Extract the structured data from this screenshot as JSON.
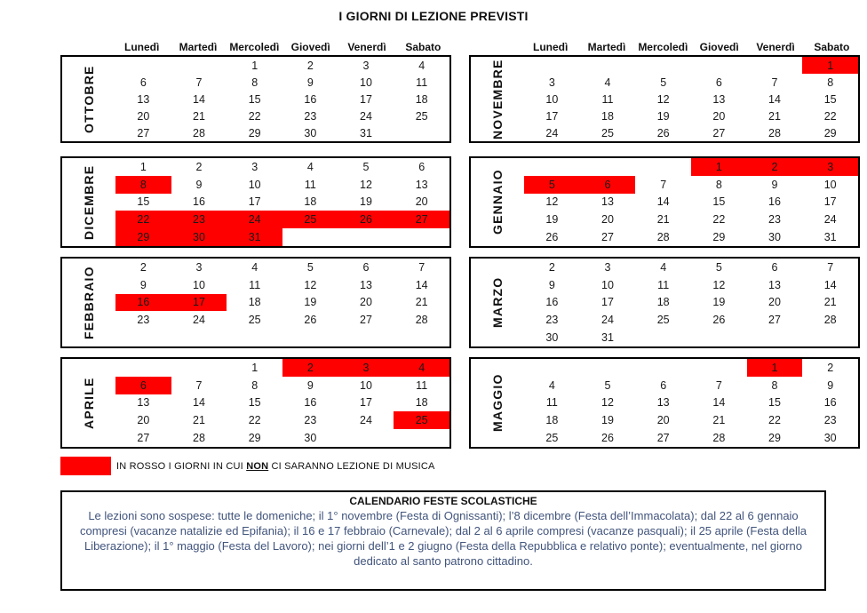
{
  "title": "I GIORNI DI LEZIONE PREVISTI",
  "weekday_headers": [
    "Lunedì",
    "Martedì",
    "Mercoledì",
    "Giovedì",
    "Venerdì",
    "Sabato"
  ],
  "colors": {
    "highlight_red": "#FF0000",
    "holiday_text_blue": "#41547C",
    "border_black": "#000000"
  },
  "months": [
    {
      "name": "OTTOBRE",
      "cells": [
        [
          "",
          "",
          "1",
          "2",
          "3",
          "4"
        ],
        [
          "6",
          "7",
          "8",
          "9",
          "10",
          "11"
        ],
        [
          "13",
          "14",
          "15",
          "16",
          "17",
          "18"
        ],
        [
          "20",
          "21",
          "22",
          "23",
          "24",
          "25"
        ],
        [
          "27",
          "28",
          "29",
          "30",
          "31",
          ""
        ]
      ],
      "red": []
    },
    {
      "name": "NOVEMBRE",
      "cells": [
        [
          "",
          "",
          "",
          "",
          "",
          "1"
        ],
        [
          "3",
          "4",
          "5",
          "6",
          "7",
          "8"
        ],
        [
          "10",
          "11",
          "12",
          "13",
          "14",
          "15"
        ],
        [
          "17",
          "18",
          "19",
          "20",
          "21",
          "22"
        ],
        [
          "24",
          "25",
          "26",
          "27",
          "28",
          "29"
        ]
      ],
      "red": [
        [
          0,
          5
        ]
      ]
    },
    {
      "name": "DICEMBRE",
      "cells": [
        [
          "1",
          "2",
          "3",
          "4",
          "5",
          "6"
        ],
        [
          "8",
          "9",
          "10",
          "11",
          "12",
          "13"
        ],
        [
          "15",
          "16",
          "17",
          "18",
          "19",
          "20"
        ],
        [
          "22",
          "23",
          "24",
          "25",
          "26",
          "27"
        ],
        [
          "29",
          "30",
          "31",
          "",
          "",
          ""
        ]
      ],
      "red": [
        [
          1,
          0
        ],
        [
          3,
          0
        ],
        [
          3,
          1
        ],
        [
          3,
          2
        ],
        [
          3,
          3
        ],
        [
          3,
          4
        ],
        [
          3,
          5
        ],
        [
          4,
          0
        ],
        [
          4,
          1
        ],
        [
          4,
          2
        ]
      ]
    },
    {
      "name": "GENNAIO",
      "cells": [
        [
          "",
          "",
          "",
          "1",
          "2",
          "3"
        ],
        [
          "5",
          "6",
          "7",
          "8",
          "9",
          "10"
        ],
        [
          "12",
          "13",
          "14",
          "15",
          "16",
          "17"
        ],
        [
          "19",
          "20",
          "21",
          "22",
          "23",
          "24"
        ],
        [
          "26",
          "27",
          "28",
          "29",
          "30",
          "31"
        ]
      ],
      "red": [
        [
          0,
          3
        ],
        [
          0,
          4
        ],
        [
          0,
          5
        ],
        [
          1,
          0
        ],
        [
          1,
          1
        ]
      ]
    },
    {
      "name": "FEBBRAIO",
      "cells": [
        [
          "2",
          "3",
          "4",
          "5",
          "6",
          "7"
        ],
        [
          "9",
          "10",
          "11",
          "12",
          "13",
          "14"
        ],
        [
          "16",
          "17",
          "18",
          "19",
          "20",
          "21"
        ],
        [
          "23",
          "24",
          "25",
          "26",
          "27",
          "28"
        ],
        [
          "",
          "",
          "",
          "",
          "",
          ""
        ]
      ],
      "red": [
        [
          2,
          0
        ],
        [
          2,
          1
        ]
      ]
    },
    {
      "name": "MARZO",
      "cells": [
        [
          "2",
          "3",
          "4",
          "5",
          "6",
          "7"
        ],
        [
          "9",
          "10",
          "11",
          "12",
          "13",
          "14"
        ],
        [
          "16",
          "17",
          "18",
          "19",
          "20",
          "21"
        ],
        [
          "23",
          "24",
          "25",
          "26",
          "27",
          "28"
        ],
        [
          "30",
          "31",
          "",
          "",
          "",
          ""
        ]
      ],
      "red": []
    },
    {
      "name": "APRILE",
      "cells": [
        [
          "",
          "",
          "1",
          "2",
          "3",
          "4"
        ],
        [
          "6",
          "7",
          "8",
          "9",
          "10",
          "11"
        ],
        [
          "13",
          "14",
          "15",
          "16",
          "17",
          "18"
        ],
        [
          "20",
          "21",
          "22",
          "23",
          "24",
          "25"
        ],
        [
          "27",
          "28",
          "29",
          "30",
          "",
          ""
        ]
      ],
      "red": [
        [
          0,
          3
        ],
        [
          0,
          4
        ],
        [
          0,
          5
        ],
        [
          1,
          0
        ],
        [
          3,
          5
        ]
      ]
    },
    {
      "name": "MAGGIO",
      "cells": [
        [
          "",
          "",
          "",
          "",
          "1",
          "2"
        ],
        [
          "4",
          "5",
          "6",
          "7",
          "8",
          "9"
        ],
        [
          "11",
          "12",
          "13",
          "14",
          "15",
          "16"
        ],
        [
          "18",
          "19",
          "20",
          "21",
          "22",
          "23"
        ],
        [
          "25",
          "26",
          "27",
          "28",
          "29",
          "30"
        ]
      ],
      "red": [
        [
          0,
          4
        ]
      ]
    }
  ],
  "legend": {
    "text_before": "IN ROSSO I GIORNI IN CUI ",
    "emphasis": "NON",
    "text_after": " CI SARANNO LEZIONE DI MUSICA"
  },
  "festivita": {
    "title": "CALENDARIO FESTE SCOLASTICHE",
    "body": "Le lezioni sono sospese: tutte le domeniche; il 1° novembre (Festa di Ognissanti); l’8 dicembre (Festa dell’Immacolata); dal 22 al 6 gennaio compresi (vacanze natalizie ed Epifania); il 16 e 17 febbraio (Carnevale); dal 2 al 6 aprile compresi (vacanze pasquali); il 25 aprile (Festa della Liberazione); il 1° maggio (Festa del Lavoro); nei giorni dell’1 e 2 giugno (Festa della Repubblica e relativo ponte); eventualmente, nel giorno dedicato al santo patrono cittadino."
  }
}
